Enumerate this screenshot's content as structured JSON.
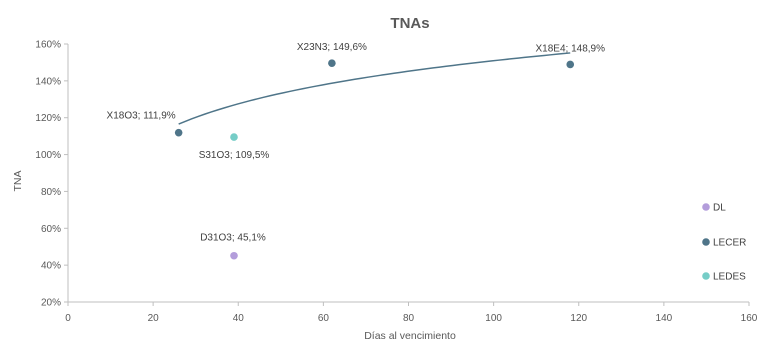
{
  "chart_data": {
    "type": "scatter",
    "title": "TNAs",
    "xlabel": "Días al vencimiento",
    "ylabel": "TNA",
    "xlim": [
      0,
      160
    ],
    "ylim": [
      0.2,
      1.6
    ],
    "x_ticks": [
      0,
      20,
      40,
      60,
      80,
      100,
      120,
      140,
      160
    ],
    "x_tick_labels": [
      "0",
      "20",
      "40",
      "60",
      "80",
      "100",
      "120",
      "140",
      "160"
    ],
    "y_ticks": [
      0.2,
      0.4,
      0.6,
      0.8,
      1.0,
      1.2,
      1.4,
      1.6
    ],
    "y_tick_labels": [
      "20%",
      "40%",
      "60%",
      "80%",
      "100%",
      "120%",
      "140%",
      "160%"
    ],
    "grid": false,
    "legend_position": "right",
    "series": [
      {
        "name": "DL",
        "color": "#b39ddb",
        "points": [
          {
            "x": 39,
            "y": 0.451,
            "label": "D31O3; 45,1%"
          }
        ]
      },
      {
        "name": "LECER",
        "color": "#4f7589",
        "points": [
          {
            "x": 26,
            "y": 1.119,
            "label": "X18O3; 111,9%"
          },
          {
            "x": 62,
            "y": 1.496,
            "label": "X23N3; 149,6%"
          },
          {
            "x": 118,
            "y": 1.489,
            "label": "X18E4; 148,9%"
          }
        ]
      },
      {
        "name": "LEDES",
        "color": "#76cdc7",
        "points": [
          {
            "x": 39,
            "y": 1.095,
            "label": "S31O3; 109,5%"
          }
        ]
      }
    ],
    "trendline": {
      "series": "LECER",
      "type": "logarithmic",
      "color": "#4f7589",
      "x_range": [
        26,
        118
      ]
    }
  }
}
